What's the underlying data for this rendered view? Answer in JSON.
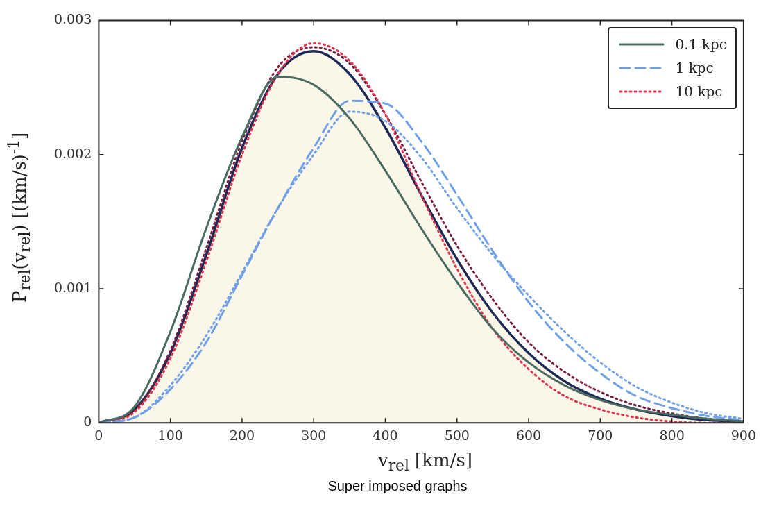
{
  "chart_data": {
    "type": "line",
    "xlabel": "v$_{rel}$ [km/s]",
    "ylabel": "P$_{rel}$(v$_{rel}$) [(km/s)$^{-1}$]",
    "annotations": [
      "Super imposed graphs"
    ],
    "x": [
      0,
      50,
      100,
      150,
      200,
      250,
      300,
      350,
      400,
      450,
      500,
      550,
      600,
      650,
      700,
      750,
      800,
      850,
      900
    ],
    "xlim": [
      0,
      900
    ],
    "xticks": [
      0,
      100,
      200,
      300,
      400,
      500,
      600,
      700,
      800,
      900
    ],
    "ylim": [
      0,
      0.003
    ],
    "yticks": [
      0,
      0.001,
      0.002,
      0.003
    ],
    "grid": false,
    "legend": "top right",
    "marker": "none",
    "series": [
      {
        "name": "0.1 kpc",
        "color": "#4a6b62",
        "line_style": "solid",
        "values": [
          0,
          0.00012,
          0.00068,
          0.00145,
          0.00213,
          0.00258,
          0.00252,
          0.00227,
          0.00188,
          0.00145,
          0.00105,
          0.0007,
          0.00045,
          0.00028,
          0.00017,
          0.0001,
          6e-05,
          3e-05,
          1e-05
        ]
      },
      {
        "name": "1 kpc",
        "color": "#6fa0e8",
        "line_style": "dashed",
        "values": [
          0,
          4e-05,
          0.00025,
          0.0006,
          0.0011,
          0.0016,
          0.00205,
          0.0024,
          0.00238,
          0.0021,
          0.0017,
          0.00128,
          0.0009,
          0.0006,
          0.00037,
          0.0002,
          0.00011,
          5e-05,
          2e-05
        ]
      },
      {
        "color": "#6fa0e8",
        "line_style": "dotted",
        "values": [
          0,
          4e-05,
          0.00028,
          0.00065,
          0.00112,
          0.0016,
          0.002,
          0.00232,
          0.00225,
          0.00198,
          0.0016,
          0.00125,
          0.00095,
          0.00068,
          0.00045,
          0.00027,
          0.00015,
          7e-05,
          3e-05
        ]
      },
      {
        "name": "10 kpc",
        "color": "#e0334f",
        "line_style": "dotted",
        "values": [
          0,
          8e-05,
          0.00048,
          0.0012,
          0.002,
          0.0026,
          0.00283,
          0.0027,
          0.0023,
          0.0017,
          0.00115,
          0.0007,
          0.0004,
          0.0002,
          0.0001,
          4e-05,
          1e-05,
          0,
          0
        ]
      },
      {
        "color": "#7a1f3d",
        "line_style": "dotted",
        "values": [
          0,
          9e-05,
          0.00054,
          0.0013,
          0.0021,
          0.00265,
          0.0028,
          0.00268,
          0.0023,
          0.0018,
          0.00132,
          0.00092,
          0.0006,
          0.00038,
          0.00023,
          0.00013,
          7e-05,
          3e-05,
          1e-05
        ]
      },
      {
        "type": "area",
        "color": "#1e2a55",
        "values": [
          0,
          0.0001,
          0.00052,
          0.00125,
          0.00205,
          0.0026,
          0.00277,
          0.0026,
          0.0022,
          0.0017,
          0.00122,
          0.00082,
          0.00052,
          0.00031,
          0.00018,
          0.0001,
          5e-05,
          2e-05,
          1e-05
        ]
      }
    ]
  }
}
